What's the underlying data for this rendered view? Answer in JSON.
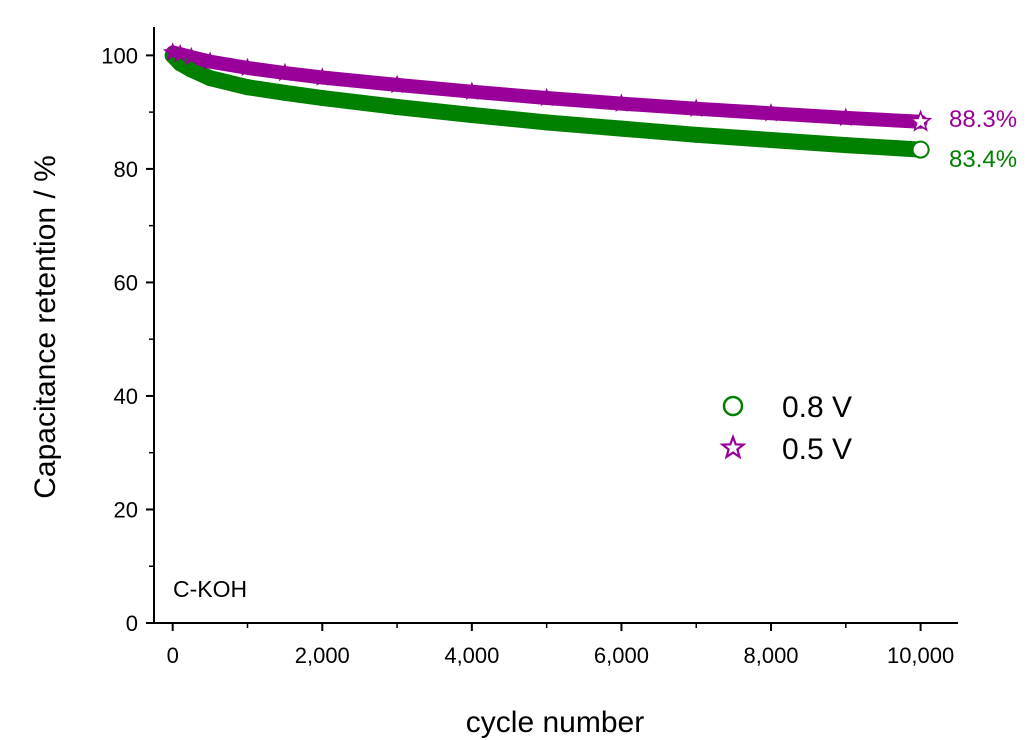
{
  "chart_data": {
    "type": "scatter",
    "xlabel": "cycle number",
    "ylabel": "Capacitance retention / %",
    "xlim": [
      -250,
      10500
    ],
    "ylim": [
      0,
      105
    ],
    "xticks": [
      0,
      2000,
      4000,
      6000,
      8000,
      10000
    ],
    "xtick_labels": [
      "0",
      "2,000",
      "4,000",
      "6,000",
      "8,000",
      "10,000"
    ],
    "yticks": [
      0,
      20,
      40,
      60,
      80,
      100
    ],
    "ytick_labels": [
      "0",
      "20",
      "40",
      "60",
      "80",
      "100"
    ],
    "annotation": "C-KOH",
    "legend_position": "center-right",
    "series": [
      {
        "name": "0.8 V",
        "marker": "circle",
        "color": "#008000",
        "x": [
          0,
          100,
          250,
          500,
          1000,
          1500,
          2000,
          3000,
          4000,
          5000,
          6000,
          7000,
          8000,
          9000,
          10000
        ],
        "y": [
          100,
          98.6,
          97.5,
          96.0,
          94.4,
          93.4,
          92.5,
          90.9,
          89.5,
          88.2,
          87.1,
          86.0,
          85.1,
          84.2,
          83.4
        ],
        "end_label": "83.4%"
      },
      {
        "name": "0.5 V",
        "marker": "star",
        "color": "#990099",
        "x": [
          0,
          100,
          250,
          500,
          1000,
          1500,
          2000,
          3000,
          4000,
          5000,
          6000,
          7000,
          8000,
          9000,
          10000
        ],
        "y": [
          100.5,
          100.2,
          99.7,
          98.9,
          97.8,
          96.9,
          96.1,
          94.8,
          93.6,
          92.5,
          91.5,
          90.6,
          89.8,
          89.0,
          88.3
        ],
        "end_label": "88.3%"
      }
    ]
  }
}
